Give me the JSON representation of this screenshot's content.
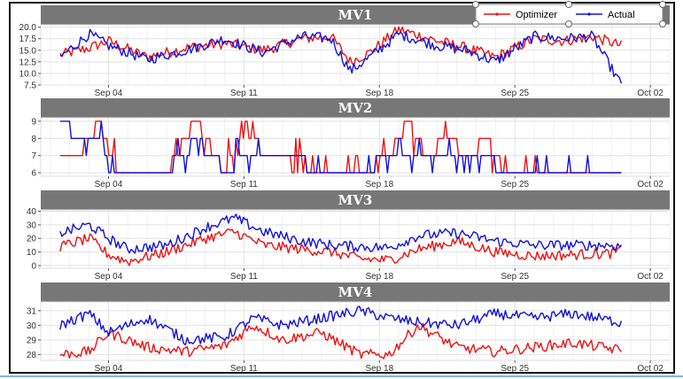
{
  "x_axis": {
    "tick_labels": [
      "Sep 04",
      "Sep 11",
      "Sep 18",
      "Sep 25",
      "Oct 02"
    ],
    "tick_days": [
      4,
      11,
      18,
      25,
      32
    ],
    "range_days": [
      0.5,
      33
    ],
    "data_start_day": 1.5,
    "data_end_day": 30.5
  },
  "legend": {
    "position": "top-right",
    "entries": [
      {
        "label": "Optimizer",
        "color": "#ee1111"
      },
      {
        "label": "Actual",
        "color": "#1111dd"
      }
    ]
  },
  "chart_data": [
    {
      "type": "line",
      "title": "MV1",
      "ylim": [
        7.5,
        20.5
      ],
      "y_ticks": [
        7.5,
        10.0,
        12.5,
        15.0,
        17.5,
        20.0
      ],
      "y_tick_labels": [
        "7.5",
        "10.0",
        "12.5",
        "15.0",
        "17.5",
        "20.0"
      ],
      "grid": true,
      "series": [
        {
          "name": "Optimizer",
          "color": "#ee1111",
          "x": [
            1.5,
            3,
            4,
            6,
            8,
            10,
            12,
            14,
            15.5,
            16.5,
            17.5,
            19,
            21,
            22.5,
            24,
            26,
            27.5,
            29,
            30.5
          ],
          "y": [
            14.0,
            15.5,
            17.0,
            13.5,
            15.5,
            16.5,
            15.0,
            17.5,
            18.0,
            12.5,
            14.5,
            19.5,
            17.0,
            15.5,
            13.5,
            17.5,
            17.0,
            18.0,
            16.0
          ]
        },
        {
          "name": "Actual",
          "color": "#1111dd",
          "x": [
            1.5,
            3,
            4,
            6,
            8,
            10,
            12,
            14,
            15.5,
            16.5,
            17.5,
            19,
            21,
            22.5,
            24,
            26,
            27.5,
            29,
            30.5
          ],
          "y": [
            13.5,
            18.5,
            16.0,
            13.0,
            15.0,
            17.5,
            14.5,
            18.0,
            17.5,
            10.5,
            13.5,
            18.5,
            16.0,
            15.0,
            12.5,
            18.0,
            17.5,
            18.0,
            7.5
          ]
        }
      ]
    },
    {
      "type": "line",
      "title": "MV2",
      "ylim": [
        5.8,
        9.2
      ],
      "y_ticks": [
        6,
        7,
        8,
        9
      ],
      "y_tick_labels": [
        "6",
        "7",
        "8",
        "9"
      ],
      "grid": true,
      "series": [
        {
          "name": "Optimizer",
          "color": "#ee1111",
          "x": [
            1.5,
            2.5,
            3.5,
            4.5,
            5.5,
            7,
            8.5,
            10,
            11,
            12,
            13.5,
            15,
            17,
            18.5,
            19.5,
            20.5,
            21.5,
            22.5,
            23.5,
            24.5,
            27,
            30.5
          ],
          "y": [
            7,
            7,
            9,
            6,
            6,
            6,
            9,
            6,
            9,
            7,
            7,
            6,
            6,
            7,
            9,
            7,
            8,
            7,
            8,
            6,
            6,
            6
          ]
        },
        {
          "name": "Actual",
          "color": "#1111dd",
          "x": [
            1.5,
            2.5,
            3.5,
            4.5,
            5.5,
            7,
            8.5,
            10,
            11,
            12,
            13.5,
            15,
            17,
            18.5,
            19.5,
            20.5,
            21.5,
            22.5,
            23.5,
            24.5,
            27,
            30.5
          ],
          "y": [
            9,
            8,
            8,
            6,
            6,
            6,
            8,
            6,
            7,
            7,
            7,
            6,
            6,
            7,
            7,
            7,
            7,
            7,
            7,
            6,
            6,
            6
          ]
        }
      ]
    },
    {
      "type": "line",
      "title": "MV3",
      "ylim": [
        -2,
        41
      ],
      "y_ticks": [
        0,
        10,
        20,
        30,
        40
      ],
      "y_tick_labels": [
        "0",
        "10",
        "20",
        "30",
        "40"
      ],
      "grid": true,
      "series": [
        {
          "name": "Optimizer",
          "color": "#ee1111",
          "x": [
            1.5,
            3,
            4,
            5,
            7,
            9,
            10.5,
            12,
            14,
            15.5,
            17,
            18.5,
            20,
            22,
            24,
            26,
            28,
            30,
            30.5
          ],
          "y": [
            14,
            20,
            8,
            3,
            10,
            20,
            25,
            15,
            12,
            10,
            5,
            4,
            12,
            18,
            10,
            7,
            8,
            9,
            12
          ]
        },
        {
          "name": "Actual",
          "color": "#1111dd",
          "x": [
            1.5,
            3,
            4,
            5,
            7,
            9,
            10.5,
            12,
            14,
            15.5,
            17,
            18.5,
            20,
            22,
            24,
            26,
            28,
            30,
            30.5
          ],
          "y": [
            24,
            30,
            20,
            12,
            15,
            28,
            35,
            25,
            18,
            15,
            14,
            13,
            22,
            24,
            18,
            15,
            15,
            15,
            14
          ]
        }
      ]
    },
    {
      "type": "line",
      "title": "MV4",
      "ylim": [
        27.6,
        31.6
      ],
      "y_ticks": [
        28,
        29,
        30,
        31
      ],
      "y_tick_labels": [
        "28",
        "29",
        "30",
        "31"
      ],
      "grid": true,
      "series": [
        {
          "name": "Optimizer",
          "color": "#ee1111",
          "x": [
            1.5,
            3,
            4,
            6,
            8,
            10,
            11.5,
            13,
            15,
            17,
            18.5,
            20,
            22,
            24,
            26,
            28,
            30.5
          ],
          "y": [
            28.0,
            28.2,
            29.5,
            28.5,
            28.2,
            28.6,
            30.0,
            29.0,
            29.5,
            28.0,
            28.0,
            30.0,
            28.5,
            28.2,
            28.5,
            28.8,
            28.3
          ]
        },
        {
          "name": "Actual",
          "color": "#1111dd",
          "x": [
            1.5,
            3,
            4,
            6,
            8,
            10,
            11.5,
            13,
            15,
            17,
            18.5,
            20,
            22,
            24,
            26,
            28,
            30.5
          ],
          "y": [
            30.0,
            30.8,
            29.5,
            30.5,
            29.0,
            29.2,
            30.5,
            30.0,
            30.5,
            31.0,
            30.5,
            30.2,
            30.0,
            30.8,
            30.5,
            30.8,
            30.2
          ]
        }
      ]
    }
  ]
}
